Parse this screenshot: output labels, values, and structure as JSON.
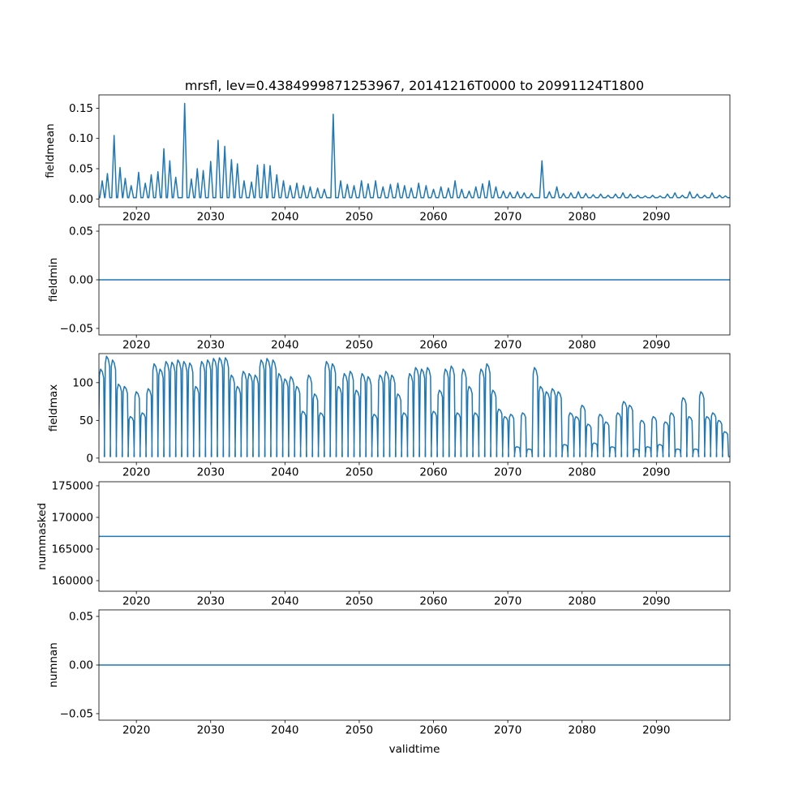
{
  "figure": {
    "title": "mrsfl, lev=0.4384999871253967, 20141216T0000 to 20991124T1800",
    "xlabel": "validtime",
    "line_color": "#1f77b4",
    "background": "#ffffff",
    "xlim": [
      2014.96,
      2099.9
    ],
    "x_ticks": [
      2020,
      2030,
      2040,
      2050,
      2060,
      2070,
      2080,
      2090
    ],
    "x_tick_labels": [
      "2020",
      "2030",
      "2040",
      "2050",
      "2060",
      "2070",
      "2080",
      "2090"
    ]
  },
  "chart_data": [
    {
      "type": "line",
      "name": "fieldmean",
      "ylabel": "fieldmean",
      "title": "mrsfl, lev=0.4384999871253967, 20141216T0000 to 20991124T1800",
      "ylim": [
        -0.013,
        0.172
      ],
      "y_ticks": [
        0.0,
        0.05,
        0.1,
        0.15
      ],
      "y_tick_labels": [
        "0.00",
        "0.05",
        "0.10",
        "0.15"
      ],
      "style": "spikes",
      "baseline": 0.002,
      "points": [
        [
          2015.4,
          0.03
        ],
        [
          2016.1,
          0.042
        ],
        [
          2017.0,
          0.105
        ],
        [
          2017.8,
          0.052
        ],
        [
          2018.5,
          0.034
        ],
        [
          2019.3,
          0.022
        ],
        [
          2020.3,
          0.044
        ],
        [
          2021.2,
          0.026
        ],
        [
          2022.0,
          0.04
        ],
        [
          2022.9,
          0.045
        ],
        [
          2023.7,
          0.083
        ],
        [
          2024.5,
          0.063
        ],
        [
          2025.3,
          0.036
        ],
        [
          2026.5,
          0.158
        ],
        [
          2027.4,
          0.033
        ],
        [
          2028.2,
          0.05
        ],
        [
          2029.0,
          0.047
        ],
        [
          2030.0,
          0.062
        ],
        [
          2031.0,
          0.097
        ],
        [
          2031.9,
          0.087
        ],
        [
          2032.8,
          0.065
        ],
        [
          2033.6,
          0.058
        ],
        [
          2034.5,
          0.03
        ],
        [
          2035.5,
          0.028
        ],
        [
          2036.3,
          0.056
        ],
        [
          2037.2,
          0.057
        ],
        [
          2038.0,
          0.055
        ],
        [
          2038.9,
          0.04
        ],
        [
          2039.8,
          0.03
        ],
        [
          2040.7,
          0.022
        ],
        [
          2041.6,
          0.026
        ],
        [
          2042.5,
          0.022
        ],
        [
          2043.4,
          0.02
        ],
        [
          2044.4,
          0.018
        ],
        [
          2045.3,
          0.016
        ],
        [
          2046.5,
          0.14
        ],
        [
          2047.5,
          0.03
        ],
        [
          2048.4,
          0.024
        ],
        [
          2049.3,
          0.022
        ],
        [
          2050.3,
          0.03
        ],
        [
          2051.2,
          0.025
        ],
        [
          2052.2,
          0.03
        ],
        [
          2053.2,
          0.02
        ],
        [
          2054.2,
          0.024
        ],
        [
          2055.2,
          0.026
        ],
        [
          2056.1,
          0.022
        ],
        [
          2057.0,
          0.018
        ],
        [
          2058.0,
          0.026
        ],
        [
          2059.0,
          0.022
        ],
        [
          2060.0,
          0.016
        ],
        [
          2061.0,
          0.02
        ],
        [
          2062.0,
          0.018
        ],
        [
          2062.9,
          0.03
        ],
        [
          2063.8,
          0.016
        ],
        [
          2064.8,
          0.013
        ],
        [
          2065.7,
          0.02
        ],
        [
          2066.6,
          0.025
        ],
        [
          2067.5,
          0.03
        ],
        [
          2068.4,
          0.02
        ],
        [
          2069.4,
          0.013
        ],
        [
          2070.3,
          0.011
        ],
        [
          2071.3,
          0.012
        ],
        [
          2072.2,
          0.01
        ],
        [
          2073.2,
          0.009
        ],
        [
          2074.6,
          0.063
        ],
        [
          2075.6,
          0.012
        ],
        [
          2076.6,
          0.02
        ],
        [
          2077.5,
          0.009
        ],
        [
          2078.5,
          0.01
        ],
        [
          2079.5,
          0.012
        ],
        [
          2080.5,
          0.009
        ],
        [
          2081.5,
          0.007
        ],
        [
          2082.5,
          0.008
        ],
        [
          2083.5,
          0.006
        ],
        [
          2084.5,
          0.008
        ],
        [
          2085.5,
          0.01
        ],
        [
          2086.5,
          0.008
        ],
        [
          2087.5,
          0.006
        ],
        [
          2088.5,
          0.005
        ],
        [
          2089.5,
          0.006
        ],
        [
          2090.5,
          0.005
        ],
        [
          2091.5,
          0.008
        ],
        [
          2092.5,
          0.01
        ],
        [
          2093.5,
          0.006
        ],
        [
          2094.5,
          0.012
        ],
        [
          2095.5,
          0.008
        ],
        [
          2096.5,
          0.006
        ],
        [
          2097.5,
          0.01
        ],
        [
          2098.5,
          0.006
        ],
        [
          2099.3,
          0.005
        ]
      ]
    },
    {
      "type": "line",
      "name": "fieldmin",
      "ylabel": "fieldmin",
      "ylim": [
        -0.0567,
        0.0567
      ],
      "y_ticks": [
        -0.05,
        0.0,
        0.05
      ],
      "y_tick_labels": [
        "−0.05",
        "0.00",
        "0.05"
      ],
      "style": "constant",
      "value": 0.0
    },
    {
      "type": "line",
      "name": "fieldmax",
      "ylabel": "fieldmax",
      "ylim": [
        -5.5,
        138.5
      ],
      "y_ticks": [
        0,
        50,
        100
      ],
      "y_tick_labels": [
        "0",
        "50",
        "100"
      ],
      "style": "cycles",
      "baseline": 2,
      "points": [
        [
          2015.3,
          118
        ],
        [
          2016.1,
          135
        ],
        [
          2016.9,
          130
        ],
        [
          2017.7,
          98
        ],
        [
          2018.5,
          95
        ],
        [
          2019.3,
          55
        ],
        [
          2020.1,
          88
        ],
        [
          2020.9,
          60
        ],
        [
          2021.7,
          92
        ],
        [
          2022.5,
          125
        ],
        [
          2023.3,
          118
        ],
        [
          2024.1,
          128
        ],
        [
          2024.9,
          127
        ],
        [
          2025.7,
          130
        ],
        [
          2026.5,
          128
        ],
        [
          2027.3,
          126
        ],
        [
          2028.1,
          95
        ],
        [
          2028.9,
          128
        ],
        [
          2029.7,
          130
        ],
        [
          2030.5,
          132
        ],
        [
          2031.3,
          133
        ],
        [
          2032.1,
          133
        ],
        [
          2032.9,
          110
        ],
        [
          2033.7,
          95
        ],
        [
          2034.5,
          115
        ],
        [
          2035.3,
          112
        ],
        [
          2036.1,
          110
        ],
        [
          2036.9,
          130
        ],
        [
          2037.7,
          132
        ],
        [
          2038.5,
          130
        ],
        [
          2039.3,
          112
        ],
        [
          2040.1,
          105
        ],
        [
          2040.9,
          108
        ],
        [
          2041.7,
          95
        ],
        [
          2042.5,
          62
        ],
        [
          2043.3,
          110
        ],
        [
          2044.1,
          85
        ],
        [
          2044.9,
          60
        ],
        [
          2045.7,
          128
        ],
        [
          2046.5,
          125
        ],
        [
          2047.3,
          95
        ],
        [
          2048.1,
          112
        ],
        [
          2048.9,
          115
        ],
        [
          2049.7,
          90
        ],
        [
          2050.5,
          112
        ],
        [
          2051.3,
          108
        ],
        [
          2052.1,
          58
        ],
        [
          2052.9,
          110
        ],
        [
          2053.7,
          115
        ],
        [
          2054.5,
          110
        ],
        [
          2055.3,
          85
        ],
        [
          2056.1,
          60
        ],
        [
          2056.9,
          112
        ],
        [
          2057.7,
          120
        ],
        [
          2058.5,
          118
        ],
        [
          2059.3,
          120
        ],
        [
          2060.1,
          62
        ],
        [
          2060.9,
          90
        ],
        [
          2061.7,
          118
        ],
        [
          2062.5,
          122
        ],
        [
          2063.3,
          60
        ],
        [
          2064.1,
          118
        ],
        [
          2064.9,
          95
        ],
        [
          2065.7,
          60
        ],
        [
          2066.5,
          118
        ],
        [
          2067.3,
          125
        ],
        [
          2068.1,
          90
        ],
        [
          2068.9,
          65
        ],
        [
          2069.7,
          55
        ],
        [
          2070.5,
          58
        ],
        [
          2071.3,
          15
        ],
        [
          2072.1,
          60
        ],
        [
          2072.9,
          12
        ],
        [
          2073.7,
          120
        ],
        [
          2074.5,
          95
        ],
        [
          2075.3,
          88
        ],
        [
          2076.1,
          92
        ],
        [
          2076.9,
          88
        ],
        [
          2077.7,
          18
        ],
        [
          2078.5,
          60
        ],
        [
          2079.3,
          55
        ],
        [
          2080.1,
          70
        ],
        [
          2080.9,
          45
        ],
        [
          2081.7,
          20
        ],
        [
          2082.5,
          58
        ],
        [
          2083.3,
          48
        ],
        [
          2084.1,
          15
        ],
        [
          2084.9,
          60
        ],
        [
          2085.7,
          75
        ],
        [
          2086.5,
          70
        ],
        [
          2087.3,
          12
        ],
        [
          2088.1,
          50
        ],
        [
          2088.9,
          15
        ],
        [
          2089.7,
          55
        ],
        [
          2090.5,
          18
        ],
        [
          2091.3,
          48
        ],
        [
          2092.1,
          60
        ],
        [
          2092.9,
          12
        ],
        [
          2093.7,
          80
        ],
        [
          2094.5,
          55
        ],
        [
          2095.3,
          12
        ],
        [
          2096.1,
          88
        ],
        [
          2096.9,
          55
        ],
        [
          2097.7,
          60
        ],
        [
          2098.5,
          50
        ],
        [
          2099.3,
          35
        ]
      ]
    },
    {
      "type": "line",
      "name": "nummasked",
      "ylabel": "nummasked",
      "ylim": [
        158333,
        175633
      ],
      "y_ticks": [
        160000,
        165000,
        170000,
        175000
      ],
      "y_tick_labels": [
        "160000",
        "165000",
        "170000",
        "175000"
      ],
      "style": "constant",
      "value": 167000
    },
    {
      "type": "line",
      "name": "numnan",
      "ylabel": "numnan",
      "xlabel": "validtime",
      "ylim": [
        -0.0567,
        0.0567
      ],
      "y_ticks": [
        -0.05,
        0.0,
        0.05
      ],
      "y_tick_labels": [
        "−0.05",
        "0.00",
        "0.05"
      ],
      "style": "constant",
      "value": 0.0
    }
  ]
}
